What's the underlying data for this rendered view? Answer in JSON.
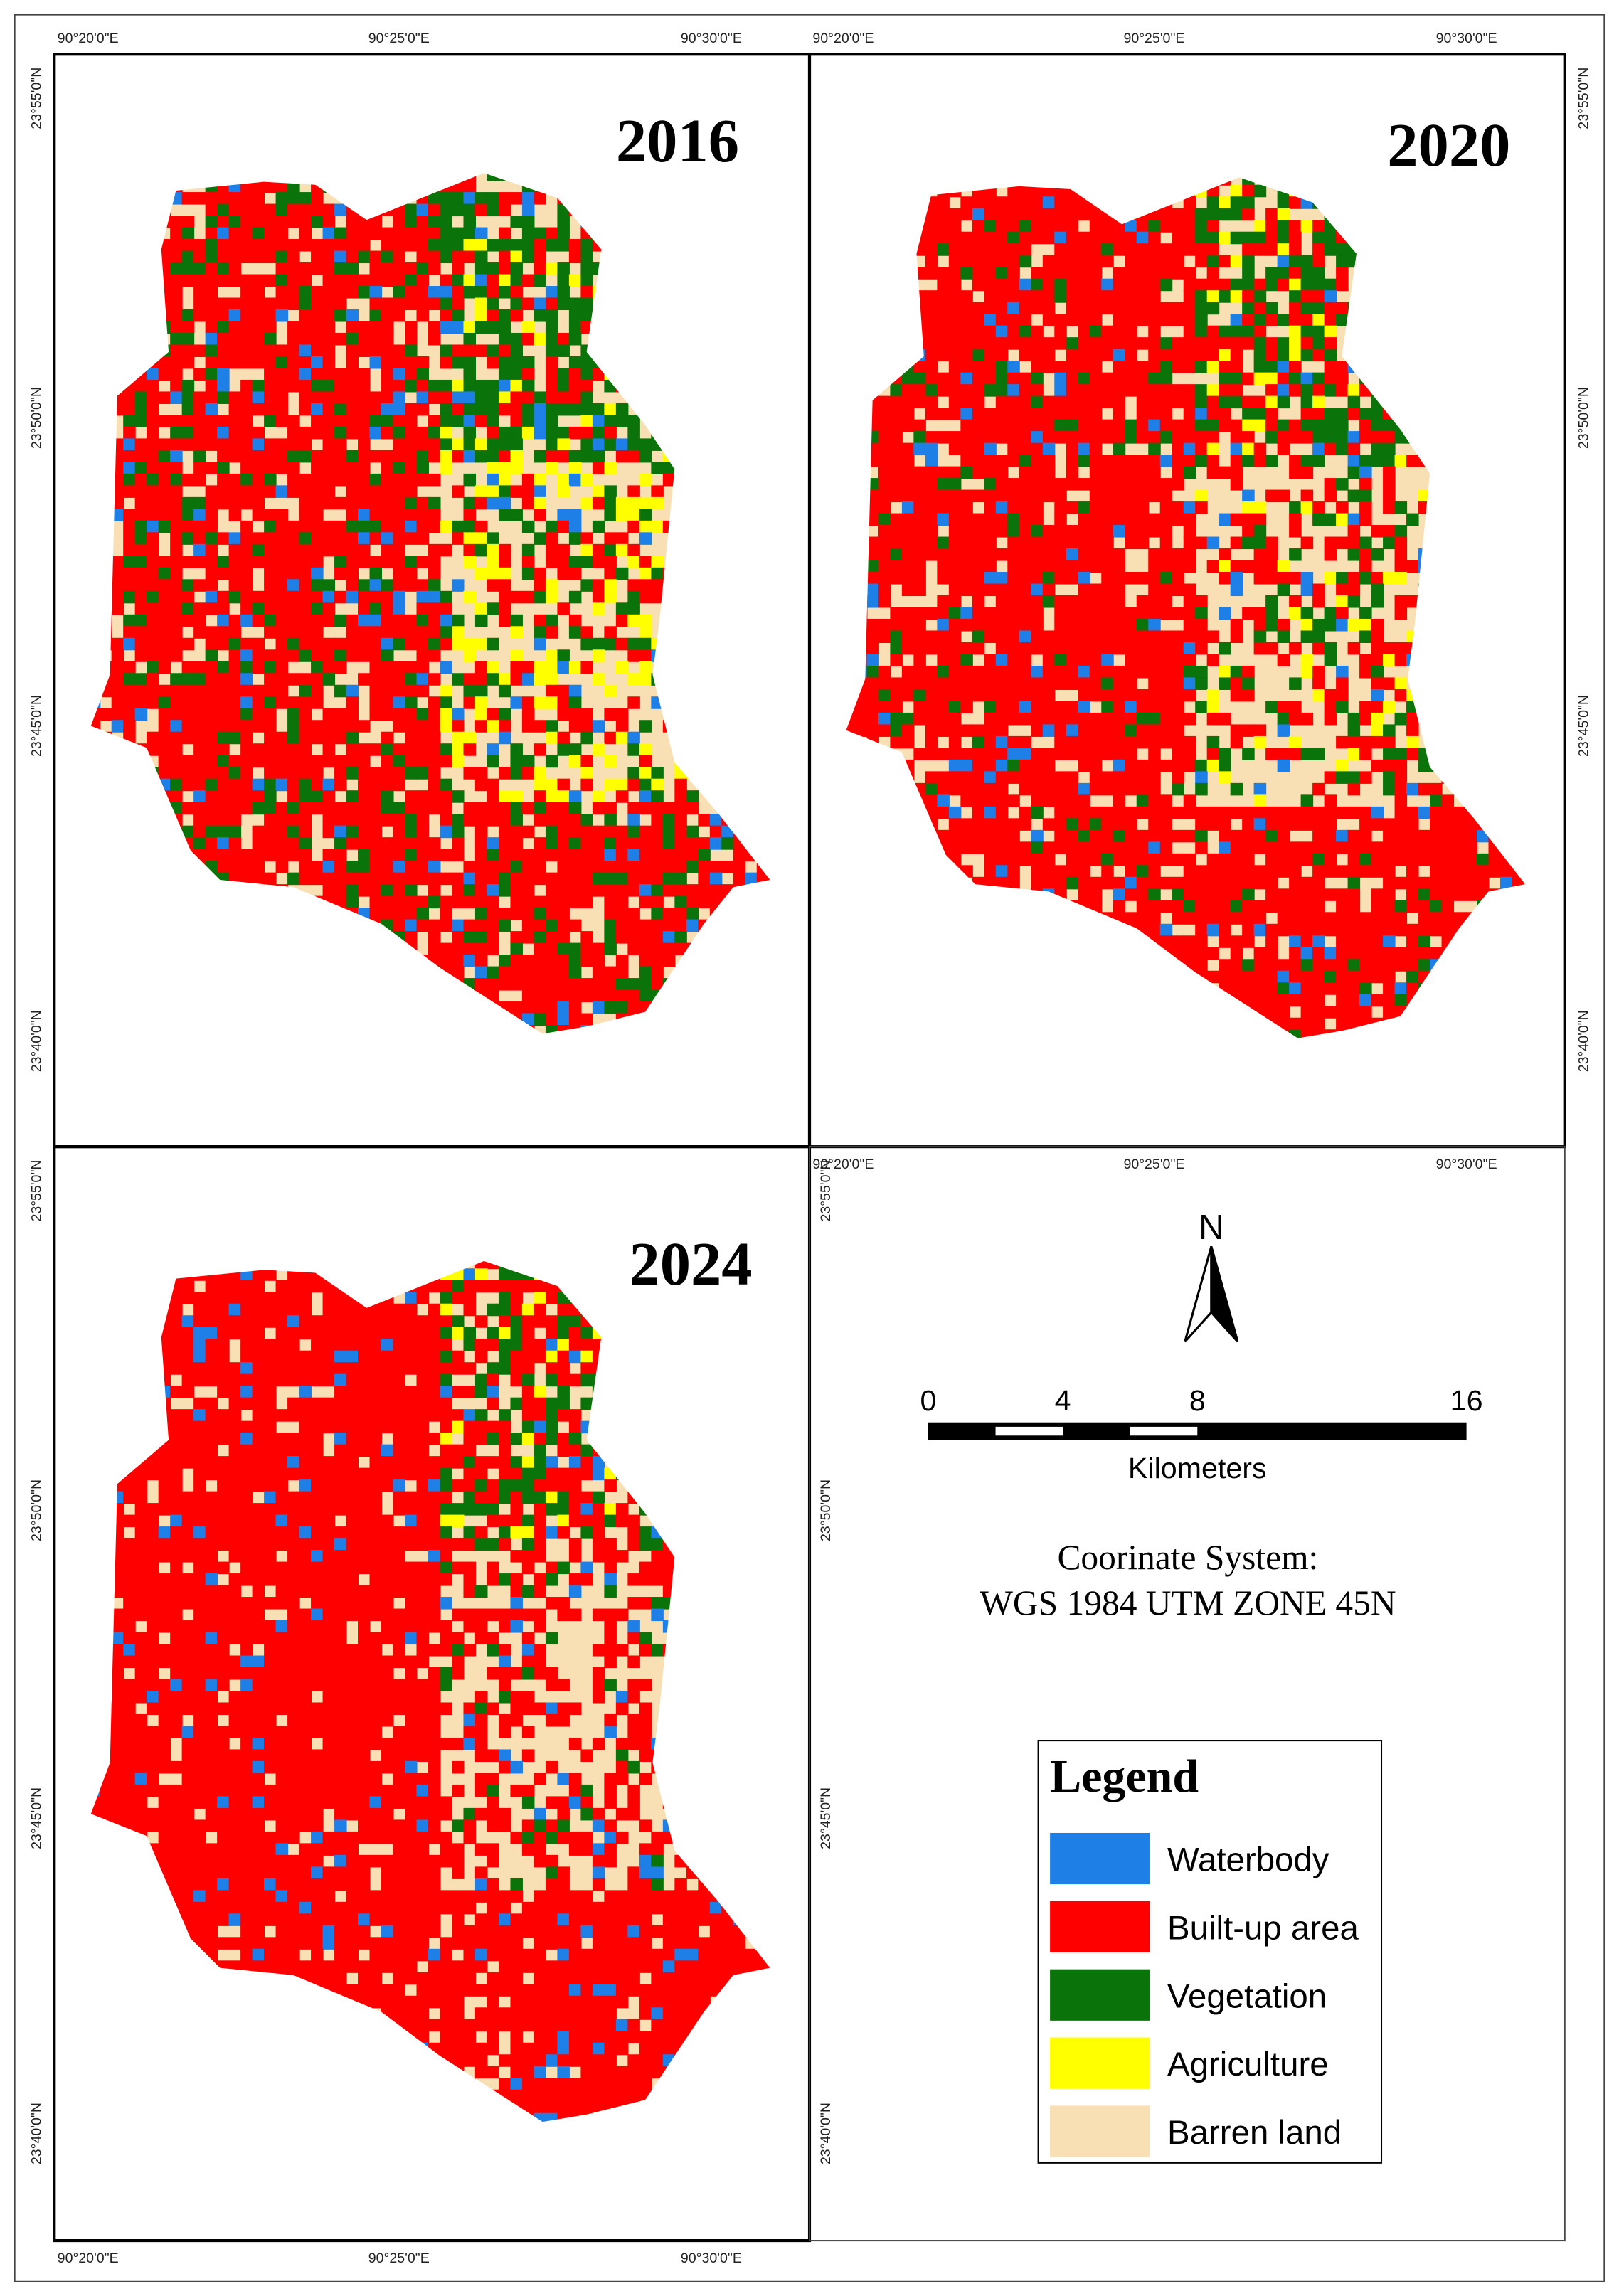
{
  "panels": [
    {
      "year": "2016",
      "x_labels": [
        "90°20'0\"E",
        "90°25'0\"E",
        "90°30'0\"E"
      ],
      "y_labels": [
        "23°55'0\"N",
        "23°50'0\"N",
        "23°45'0\"N",
        "23°40'0\"N"
      ]
    },
    {
      "year": "2020",
      "x_labels": [
        "90°20'0\"E",
        "90°25'0\"E",
        "90°30'0\"E"
      ],
      "y_labels": [
        "23°55'0\"N",
        "23°50'0\"N",
        "23°45'0\"N",
        "23°40'0\"N"
      ]
    },
    {
      "year": "2024",
      "x_labels": [
        "90°20'0\"E",
        "90°25'0\"E",
        "90°30'0\"E"
      ],
      "y_labels": [
        "23°55'0\"N",
        "23°50'0\"N",
        "23°45'0\"N",
        "23°40'0\"N"
      ]
    }
  ],
  "info_panel": {
    "x_labels": [
      "90°20'0\"E",
      "90°25'0\"E",
      "90°30'0\"E"
    ],
    "y_labels": [
      "23°55'0\"N",
      "23°50'0\"N",
      "23°45'0\"N",
      "23°40'0\"N"
    ]
  },
  "north_arrow": "N",
  "scale_bar": {
    "ticks": [
      0,
      4,
      8,
      16
    ],
    "unit": "Kilometers"
  },
  "coordinate_system": [
    "Coorinate System:",
    "WGS 1984 UTM ZONE 45N"
  ],
  "legend": {
    "title": "Legend",
    "items": [
      {
        "label": "Waterbody",
        "color": "#1e7fe6"
      },
      {
        "label": "Built-up area",
        "color": "#ff0000"
      },
      {
        "label": "Vegetation",
        "color": "#0a730a"
      },
      {
        "label": "Agriculture",
        "color": "#ffff00"
      },
      {
        "label": "Barren land",
        "color": "#f8dfb4"
      }
    ]
  }
}
